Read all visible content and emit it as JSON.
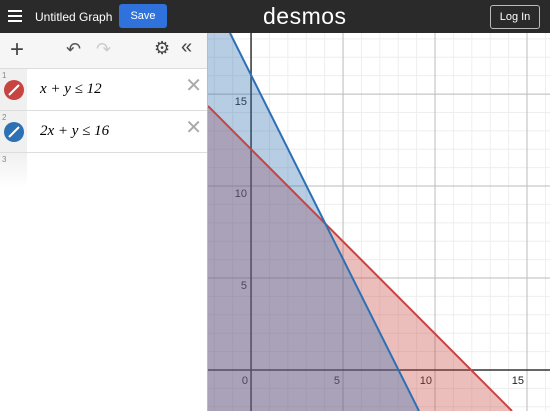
{
  "header": {
    "title": "Untitled Graph",
    "save": "Save",
    "logo": "desmos",
    "login": "Log In"
  },
  "expressions": [
    {
      "index": "1",
      "latex": "x + y ≤ 12",
      "color": "#c74440"
    },
    {
      "index": "2",
      "latex": "2x + y ≤ 16",
      "color": "#2d70b3"
    },
    {
      "index": "3"
    }
  ],
  "graph": {
    "xlim": [
      -2.34,
      16.25
    ],
    "ylim": [
      -2.23,
      18.32
    ],
    "xticks": [
      0,
      5,
      10,
      15
    ],
    "yticks": [
      5,
      10,
      15
    ]
  }
}
